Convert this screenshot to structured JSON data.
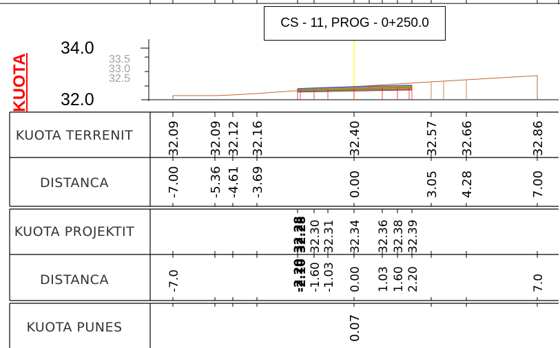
{
  "section_title": "CS - 11, PROG - 0+250.0",
  "axis": {
    "vertical_label": "KUOTA",
    "top_value": "34.0",
    "bottom_value": "32.0",
    "minor_ticks": [
      "33.5",
      "33.0",
      "32.5"
    ]
  },
  "colors": {
    "vertical_label": "#ff0000",
    "terrain_line": "#c8621e",
    "center_line": "#ffff00",
    "design_fill": "#e07020",
    "grid_gray": "#888888"
  },
  "rows": {
    "kuota_terrenit": {
      "label": "KUOTA TERRENIT",
      "values": [
        "32.09",
        "32.09",
        "32.12",
        "32.16",
        "32.40",
        "32.57",
        "32.66",
        "32.86"
      ]
    },
    "distanca_1": {
      "label": "DISTANCA",
      "values": [
        "-7.00",
        "-5.36",
        "-4.61",
        "-3.69",
        "0.00",
        "3.05",
        "4.28",
        "7.00"
      ]
    },
    "kuota_projektit": {
      "label": "KUOTA PROJEKTIT",
      "values": [
        "32.28",
        "32.28",
        "32.30",
        "32.31",
        "32.34",
        "32.36",
        "32.38",
        "32.39"
      ]
    },
    "distanca_2": {
      "label": "DISTANCA",
      "values": [
        "-7.0",
        "-2.20",
        "-2.10",
        "-1.60",
        "-1.03",
        "0.00",
        "1.03",
        "1.60",
        "2.20",
        "7.0"
      ]
    },
    "kuota_punes": {
      "label": "KUOTA PUNES",
      "values": [
        "0.07"
      ]
    }
  }
}
